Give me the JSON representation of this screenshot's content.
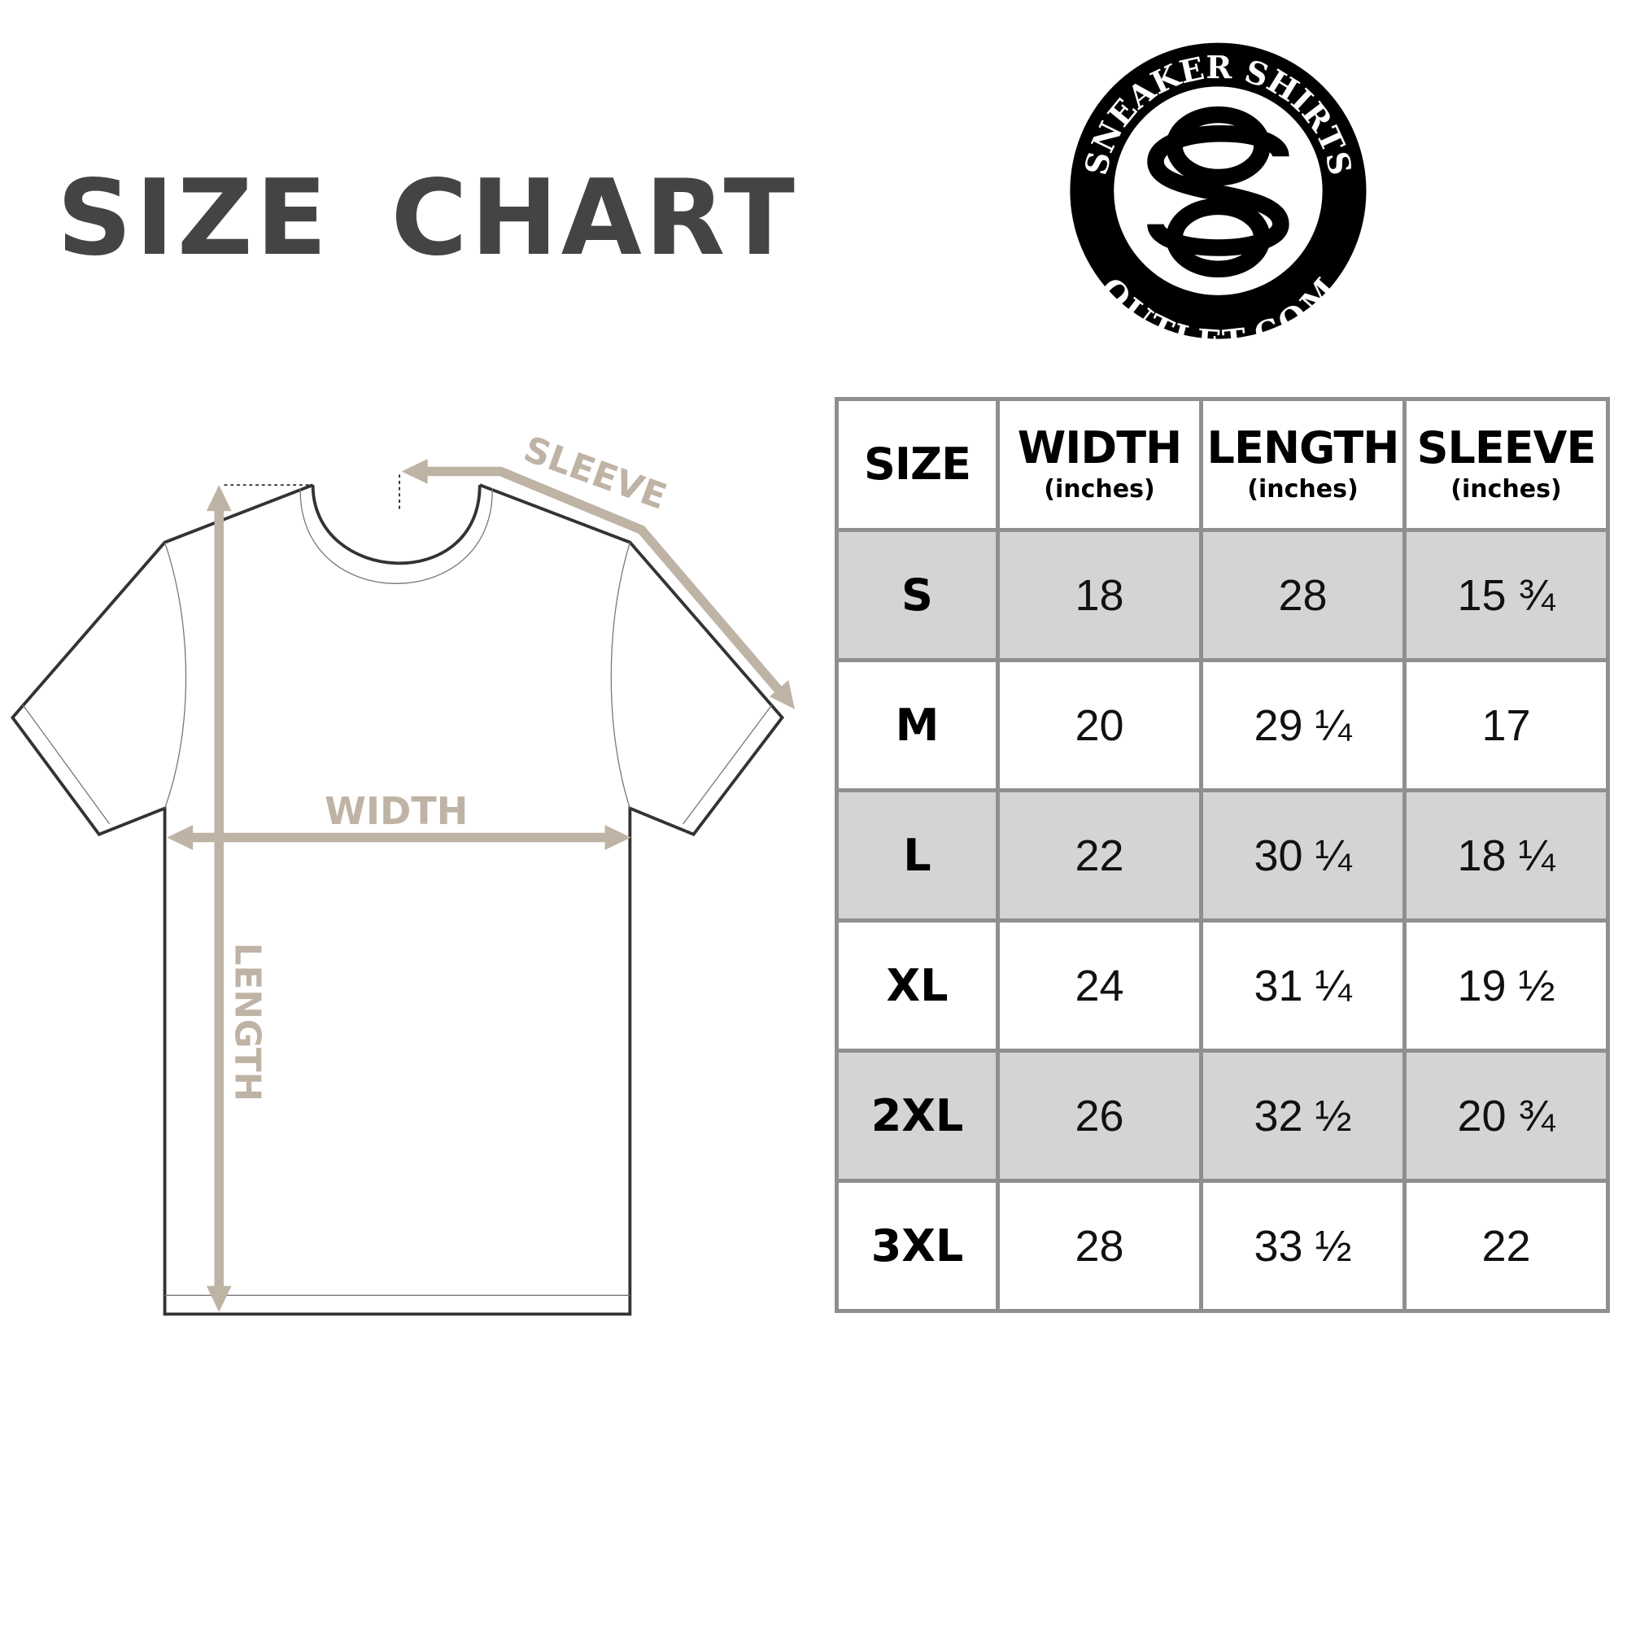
{
  "title": "SIZE CHART",
  "logo": {
    "top_text": "SNEAKER SHIRTS",
    "bottom_text": "OUTLET.COM",
    "monogram": "SO"
  },
  "diagram": {
    "sleeve_label": "SLEEVE",
    "width_label": "WIDTH",
    "length_label": "LENGTH",
    "arrow_color": "#bfb3a5",
    "outline_color": "#333333"
  },
  "table": {
    "headers": [
      {
        "label": "SIZE",
        "unit": ""
      },
      {
        "label": "WIDTH",
        "unit": "(inches)"
      },
      {
        "label": "LENGTH",
        "unit": "(inches)"
      },
      {
        "label": "SLEEVE",
        "unit": "(inches)"
      }
    ],
    "rows": [
      [
        "S",
        "18",
        "28",
        "15 ¾"
      ],
      [
        "M",
        "20",
        "29 ¼",
        "17"
      ],
      [
        "L",
        "22",
        "30 ¼",
        "18 ¼"
      ],
      [
        "XL",
        "24",
        "31 ¼",
        "19 ½"
      ],
      [
        "2XL",
        "26",
        "32 ½",
        "20 ¾"
      ],
      [
        "3XL",
        "28",
        "33 ½",
        "22"
      ]
    ],
    "stripe_color": "#d4d4d4",
    "border_color": "#8f8f8f"
  }
}
